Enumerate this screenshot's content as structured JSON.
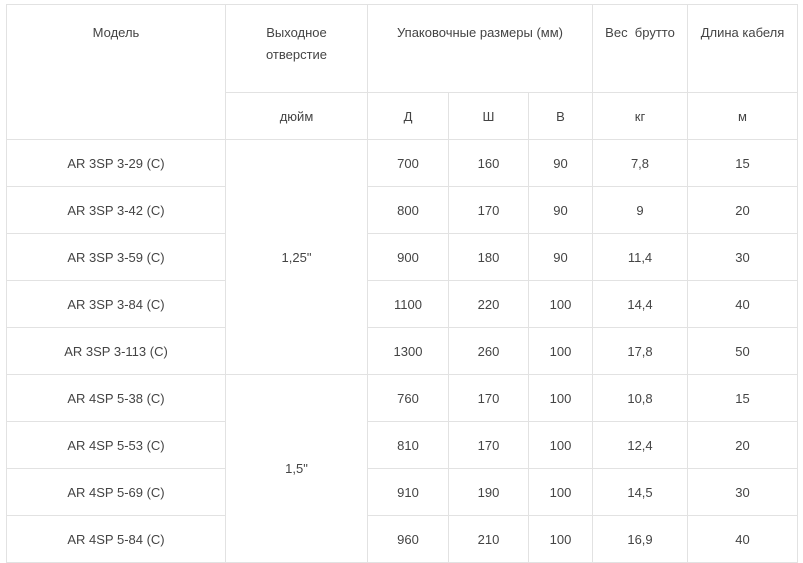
{
  "table": {
    "headers": {
      "model": "Модель",
      "outlet": "Выходное отверстие",
      "packaging": "Упаковочные размеры (мм)",
      "weight": "Вес  брутто",
      "cable": "Длина кабеля"
    },
    "units": {
      "outlet": "дюйм",
      "length": "Д",
      "width": "Ш",
      "height": "В",
      "weight": "кг",
      "cable": "м"
    },
    "groups": [
      {
        "outlet": "1,25\""
      },
      {
        "outlet": "1,5\""
      }
    ],
    "rows": [
      {
        "model": "AR 3SP 3-29 (C)",
        "length": "700",
        "width": "160",
        "height": "90",
        "weight": "7,8",
        "cable": "15"
      },
      {
        "model": "AR 3SP 3-42 (C)",
        "length": "800",
        "width": "170",
        "height": "90",
        "weight": "9",
        "cable": "20"
      },
      {
        "model": "AR 3SP 3-59 (C)",
        "length": "900",
        "width": "180",
        "height": "90",
        "weight": "11,4",
        "cable": "30"
      },
      {
        "model": "AR 3SP 3-84 (C)",
        "length": "1100",
        "width": "220",
        "height": "100",
        "weight": "14,4",
        "cable": "40"
      },
      {
        "model": "AR 3SP 3-113 (C)",
        "length": "1300",
        "width": "260",
        "height": "100",
        "weight": "17,8",
        "cable": "50"
      },
      {
        "model": "AR 4SP 5-38 (C)",
        "length": "760",
        "width": "170",
        "height": "100",
        "weight": "10,8",
        "cable": "15"
      },
      {
        "model": "AR 4SP 5-53 (C)",
        "length": "810",
        "width": "170",
        "height": "100",
        "weight": "12,4",
        "cable": "20"
      },
      {
        "model": "AR 4SP 5-69 (C)",
        "length": "910",
        "width": "190",
        "height": "100",
        "weight": "14,5",
        "cable": "30"
      },
      {
        "model": "AR 4SP 5-84 (C)",
        "length": "960",
        "width": "210",
        "height": "100",
        "weight": "16,9",
        "cable": "40"
      }
    ]
  }
}
